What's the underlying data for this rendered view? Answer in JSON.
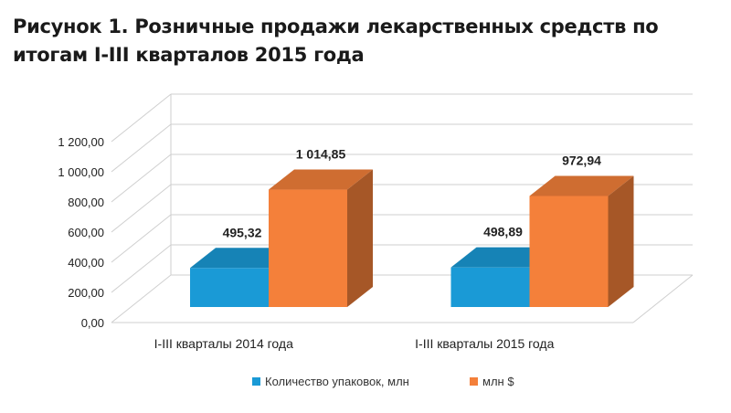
{
  "title": {
    "line1": "Рисунок 1.  Розничные продажи лекарственных средств по",
    "line2": "итогам I-III кварталов 2015 года"
  },
  "chart_data": {
    "type": "bar",
    "style": "3d-clustered-column",
    "categories": [
      "I-III кварталы 2014 года",
      "I-III кварталы 2015 года"
    ],
    "series": [
      {
        "name": "Количество упаковок, млн",
        "values": [
          495.32,
          498.89
        ],
        "labels": [
          "495,32",
          "498,89"
        ],
        "color": "#1a9ad6"
      },
      {
        "name": "млн $",
        "values": [
          1014.85,
          972.94
        ],
        "labels": [
          "1 014,85",
          "972,94"
        ],
        "color": "#f4803a"
      }
    ],
    "ylim": [
      0,
      1200
    ],
    "yticks": [
      "0,00",
      "200,00",
      "400,00",
      "600,00",
      "800,00",
      "1 000,00",
      "1 200,00"
    ],
    "grid": true,
    "legend_position": "bottom"
  }
}
